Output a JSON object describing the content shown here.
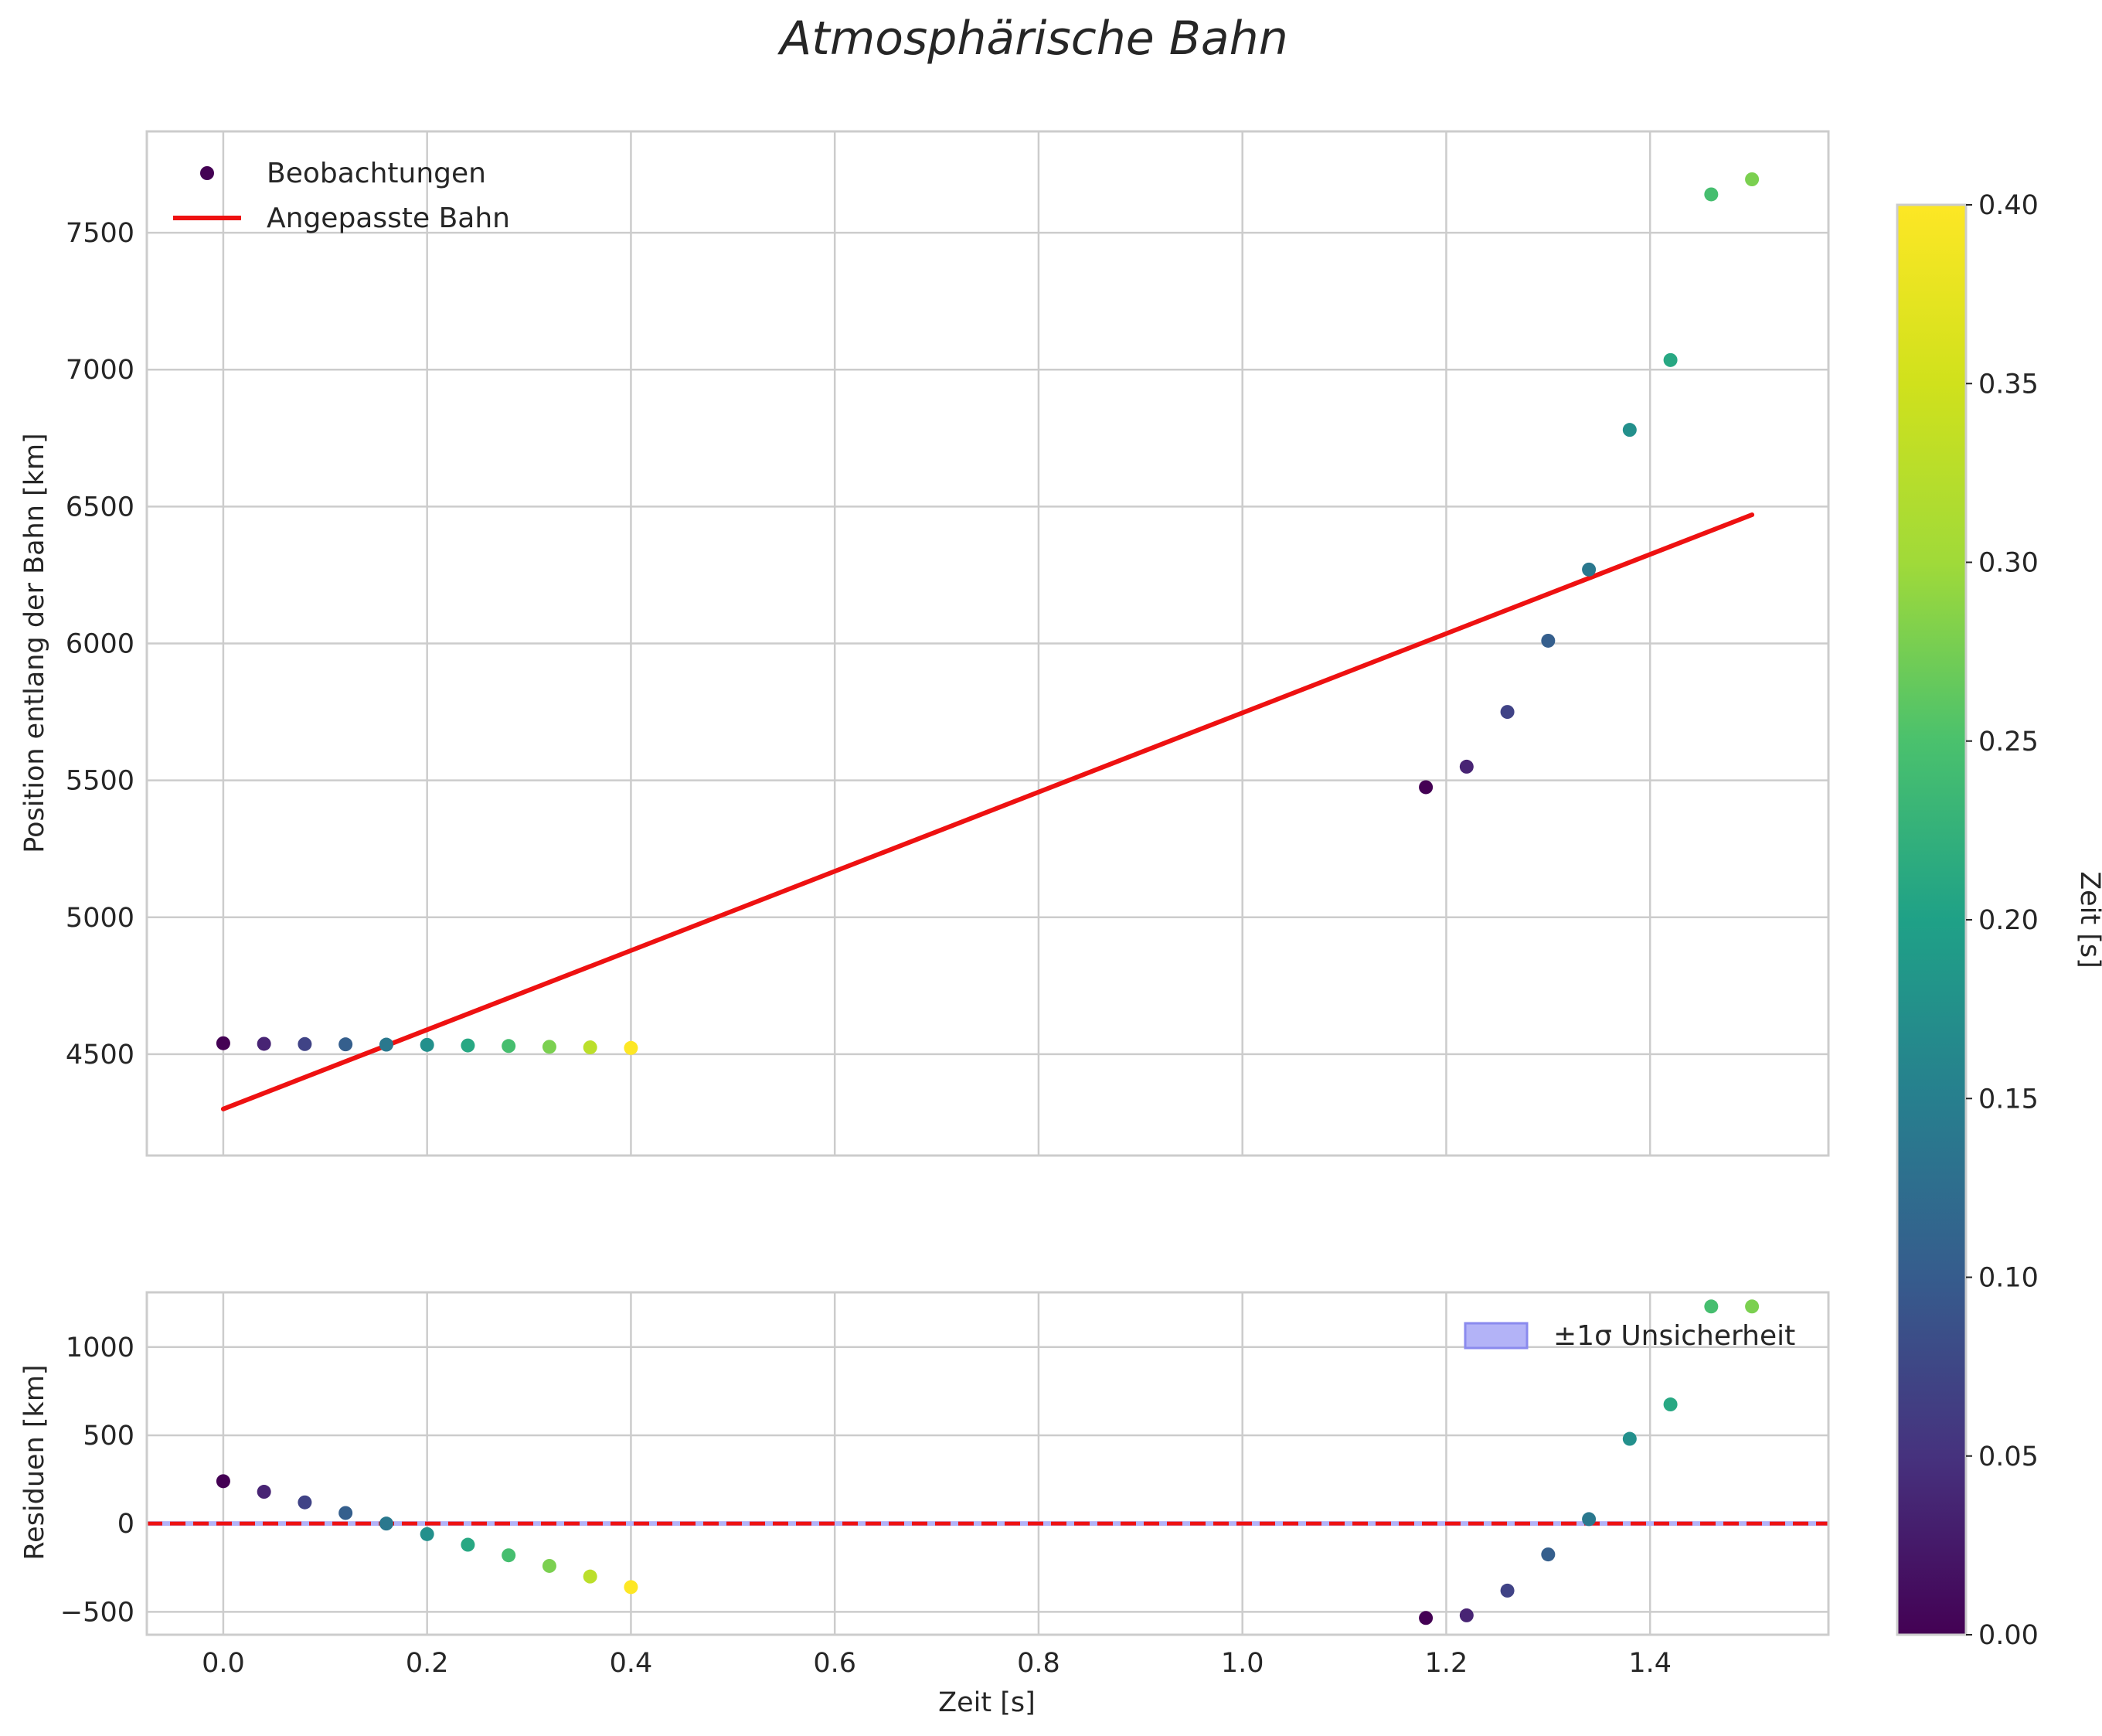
{
  "chart_data": [
    {
      "type": "scatter",
      "title": "Atmosphärische Bahn",
      "xlabel": "",
      "ylabel": "Position entlang der Bahn [km]",
      "xlim": [
        -0.075,
        1.575
      ],
      "ylim": [
        4130,
        7870
      ],
      "xticks": [
        0.0,
        0.2,
        0.4,
        0.6,
        0.8,
        1.0,
        1.2,
        1.4
      ],
      "yticks": [
        4500,
        5000,
        5500,
        6000,
        6500,
        7000,
        7500
      ],
      "ytick_labels": [
        "4500",
        "5000",
        "5500",
        "6000",
        "6500",
        "7000",
        "7500"
      ],
      "grid": true,
      "legend": {
        "placement": "top-left",
        "entries": [
          {
            "label": "Beobachtungen",
            "kind": "marker"
          },
          {
            "label": "Angepasste Bahn",
            "kind": "line"
          }
        ]
      },
      "series": [
        {
          "name": "Beobachtungen",
          "kind": "scatter",
          "x": [
            0.0,
            0.04,
            0.08,
            0.12,
            0.16,
            0.2,
            0.24,
            0.28,
            0.32,
            0.36,
            0.4,
            1.18,
            1.22,
            1.26,
            1.3,
            1.34,
            1.38,
            1.42,
            1.46,
            1.5
          ],
          "y": [
            4540,
            4538,
            4537,
            4536,
            4535,
            4534,
            4532,
            4530,
            4527,
            4525,
            4523,
            5475,
            5550,
            5750,
            6010,
            6270,
            6780,
            7035,
            7640,
            7695
          ],
          "c": [
            0.0,
            0.04,
            0.08,
            0.12,
            0.16,
            0.2,
            0.24,
            0.28,
            0.32,
            0.36,
            0.4,
            0.0,
            0.04,
            0.08,
            0.12,
            0.16,
            0.2,
            0.24,
            0.28,
            0.32
          ]
        },
        {
          "name": "Angepasste Bahn",
          "kind": "line",
          "color": "#ee1111",
          "x": [
            0.0,
            1.5
          ],
          "y": [
            4300,
            6470
          ]
        }
      ]
    },
    {
      "type": "scatter",
      "title": "",
      "xlabel": "Zeit [s]",
      "ylabel": "Residuen [km]",
      "xlim": [
        -0.075,
        1.575
      ],
      "ylim": [
        -630,
        1310
      ],
      "xticks": [
        0.0,
        0.2,
        0.4,
        0.6,
        0.8,
        1.0,
        1.2,
        1.4
      ],
      "xtick_labels": [
        "0.0",
        "0.2",
        "0.4",
        "0.6",
        "0.8",
        "1.0",
        "1.2",
        "1.4"
      ],
      "yticks": [
        -500,
        0,
        500,
        1000
      ],
      "ytick_labels": [
        "−500",
        "0",
        "500",
        "1000"
      ],
      "grid": true,
      "legend": {
        "placement": "top-right",
        "entries": [
          {
            "label": "±1σ Unsicherheit",
            "kind": "patch",
            "color": "#b3b3f7"
          }
        ]
      },
      "zero_line": {
        "y": 0,
        "color": "#ee1111",
        "style": "dashed"
      },
      "series": [
        {
          "name": "Residuen",
          "kind": "scatter",
          "x": [
            0.0,
            0.04,
            0.08,
            0.12,
            0.16,
            0.2,
            0.24,
            0.28,
            0.32,
            0.36,
            0.4,
            1.18,
            1.22,
            1.26,
            1.3,
            1.34,
            1.38,
            1.42,
            1.46,
            1.5
          ],
          "y": [
            240,
            180,
            120,
            60,
            0,
            -60,
            -120,
            -180,
            -240,
            -300,
            -360,
            -535,
            -520,
            -380,
            -175,
            25,
            480,
            675,
            1230,
            1230
          ],
          "c": [
            0.0,
            0.04,
            0.08,
            0.12,
            0.16,
            0.2,
            0.24,
            0.28,
            0.32,
            0.36,
            0.4,
            0.0,
            0.04,
            0.08,
            0.12,
            0.16,
            0.2,
            0.24,
            0.28,
            0.32
          ]
        }
      ]
    }
  ],
  "colorbar": {
    "label": "Zeit [s]",
    "colormap": "viridis",
    "range": [
      0.0,
      0.4
    ],
    "ticks": [
      0.0,
      0.05,
      0.1,
      0.15,
      0.2,
      0.25,
      0.3,
      0.35,
      0.4
    ],
    "tick_labels": [
      "0.00",
      "0.05",
      "0.10",
      "0.15",
      "0.20",
      "0.25",
      "0.30",
      "0.35",
      "0.40"
    ]
  }
}
